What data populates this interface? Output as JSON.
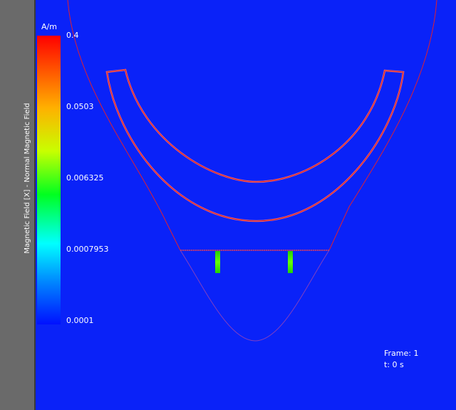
{
  "colorbar": {
    "title": "Magnetic Field [X] - Normal Magnetic Field",
    "unit": "A/m",
    "ticks": [
      "0.4",
      "0.0503",
      "0.006325",
      "0.0007953",
      "0.0001"
    ]
  },
  "status": {
    "frame": "Frame: 1",
    "time": "t: 0 s"
  }
}
